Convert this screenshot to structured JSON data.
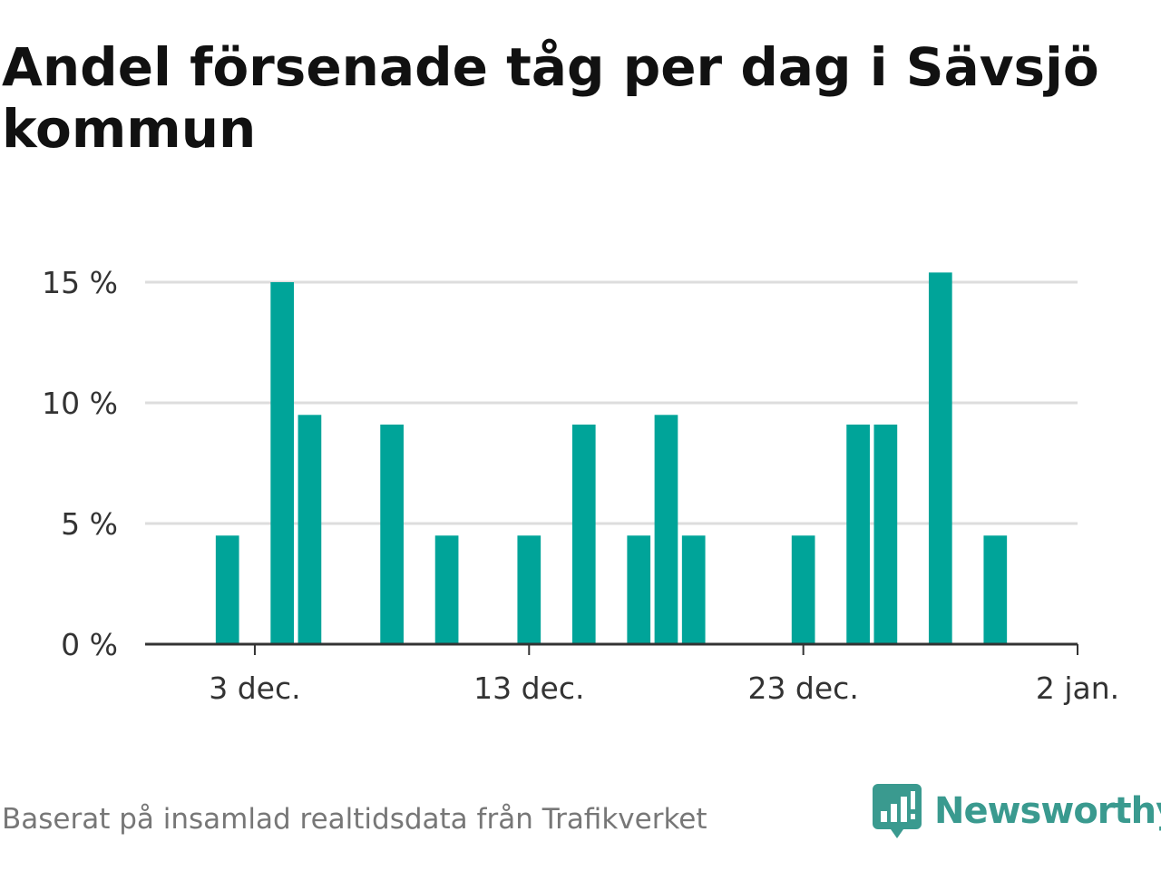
{
  "title": "Andel försenade tåg per dag i Sävsjö kommun",
  "source": "Baserat på insamlad realtidsdata från Trafikverket",
  "brand": {
    "name": "Newsworthy",
    "icon": "bar-chart-speech-bubble-icon",
    "color": "#3a9a8f"
  },
  "colors": {
    "bar": "#00a499",
    "grid": "#dddddd",
    "axis": "#333333",
    "text": "#333333"
  },
  "chart_data": {
    "type": "bar",
    "title": "Andel försenade tåg per dag i Sävsjö kommun",
    "xlabel": "",
    "ylabel": "",
    "x_type": "date",
    "xlim": [
      "2022-11-29",
      "2023-01-02"
    ],
    "ylim": [
      0,
      15
    ],
    "y_ticks": [
      0,
      5,
      10,
      15
    ],
    "y_tick_labels": [
      "0 %",
      "5 %",
      "10 %",
      "15 %"
    ],
    "x_ticks": [
      "2022-12-03",
      "2022-12-13",
      "2022-12-23",
      "2023-01-02"
    ],
    "x_tick_labels": [
      "3 dec.",
      "13 dec.",
      "23 dec.",
      "2 jan."
    ],
    "grid": true,
    "legend": "none",
    "categories": [
      "2022-12-02",
      "2022-12-04",
      "2022-12-05",
      "2022-12-08",
      "2022-12-10",
      "2022-12-13",
      "2022-12-15",
      "2022-12-17",
      "2022-12-18",
      "2022-12-19",
      "2022-12-23",
      "2022-12-25",
      "2022-12-26",
      "2022-12-28",
      "2022-12-30"
    ],
    "values": [
      4.5,
      15.0,
      9.5,
      9.1,
      4.5,
      4.5,
      9.1,
      4.5,
      9.5,
      4.5,
      4.5,
      9.1,
      9.1,
      15.4,
      4.5
    ]
  }
}
